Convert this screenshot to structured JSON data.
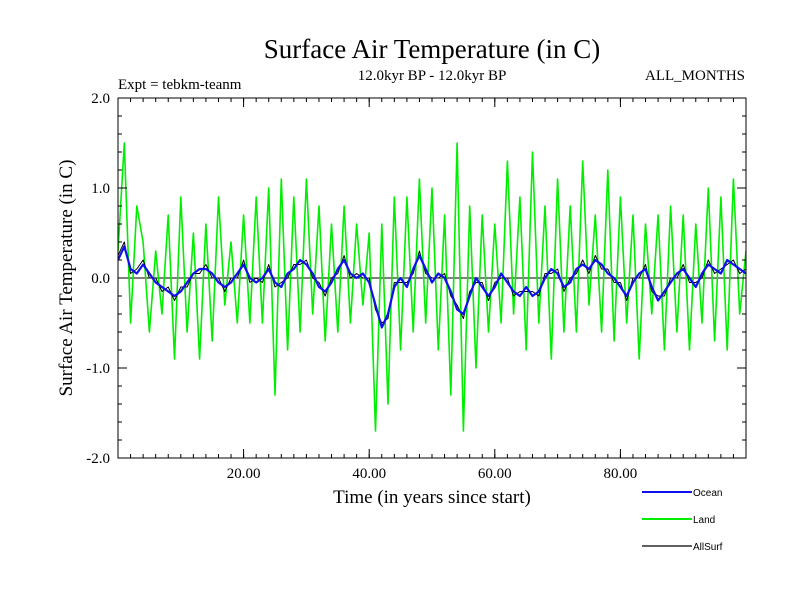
{
  "chart_data": {
    "type": "line",
    "title": "Surface Air Temperature (in C)",
    "subtitle": "12.0kyr BP - 12.0kyr BP",
    "expt_label": "Expt = tebkm-teanm",
    "months_label": "ALL_MONTHS",
    "xlabel": "Time (in years since start)",
    "ylabel": "Surface Air Temperature (in C)",
    "xlim": [
      0,
      100
    ],
    "ylim": [
      -2.0,
      2.0
    ],
    "x_ticks": [
      20,
      40,
      60,
      80
    ],
    "x_tick_labels": [
      "20.00",
      "40.00",
      "60.00",
      "80.00"
    ],
    "y_ticks": [
      2.0,
      1.0,
      0.0,
      -1.0,
      -2.0
    ],
    "y_tick_labels": [
      "2.0",
      "1.0",
      "0.0",
      "-1.0",
      "-2.0"
    ],
    "zero_line": true,
    "legend_position": "bottom-right",
    "series": [
      {
        "name": "Land",
        "color": "#00ee00",
        "x_step": 1,
        "x_start": 0,
        "values": [
          0.3,
          1.5,
          -0.5,
          0.8,
          0.4,
          -0.6,
          0.3,
          -0.4,
          0.7,
          -0.9,
          0.9,
          -0.6,
          0.5,
          -0.9,
          0.6,
          -0.7,
          0.9,
          -0.3,
          0.4,
          -0.5,
          0.7,
          -0.5,
          0.9,
          -0.5,
          1.0,
          -1.3,
          1.1,
          -0.8,
          0.9,
          -0.6,
          1.1,
          -0.4,
          0.8,
          -0.7,
          0.6,
          -0.6,
          0.8,
          -0.5,
          0.6,
          -0.3,
          0.5,
          -1.7,
          0.6,
          -1.4,
          0.9,
          -0.8,
          0.9,
          -0.6,
          1.1,
          -0.5,
          1.0,
          -0.8,
          0.7,
          -1.3,
          1.5,
          -1.7,
          0.8,
          -1.0,
          0.7,
          -0.6,
          0.6,
          -0.5,
          1.3,
          -0.4,
          0.9,
          -0.8,
          1.4,
          -0.5,
          0.8,
          -0.9,
          1.1,
          -0.6,
          0.8,
          -0.6,
          1.3,
          -0.3,
          0.7,
          -0.6,
          1.2,
          -0.7,
          0.9,
          -0.5,
          0.7,
          -0.9,
          0.6,
          -0.4,
          0.7,
          -0.8,
          0.8,
          -0.6,
          0.7,
          -0.8,
          0.6,
          -0.5,
          1.0,
          -0.7,
          0.9,
          -0.8,
          1.1,
          -0.4,
          0.3
        ]
      },
      {
        "name": "Ocean",
        "color": "#1010ee",
        "x_step": 1,
        "x_start": 0,
        "values": [
          0.2,
          0.35,
          0.1,
          0.05,
          0.15,
          0.05,
          -0.05,
          -0.1,
          -0.15,
          -0.2,
          -0.15,
          -0.05,
          0.05,
          0.1,
          0.1,
          0.05,
          -0.05,
          -0.1,
          -0.05,
          0.05,
          0.15,
          0.0,
          -0.05,
          0.0,
          0.1,
          -0.05,
          -0.1,
          0.05,
          0.1,
          0.2,
          0.15,
          0.05,
          -0.1,
          -0.15,
          -0.05,
          0.1,
          0.2,
          0.05,
          0.0,
          0.05,
          -0.05,
          -0.3,
          -0.55,
          -0.4,
          -0.1,
          0.0,
          -0.1,
          0.1,
          0.25,
          0.1,
          -0.05,
          0.05,
          0.0,
          -0.15,
          -0.35,
          -0.4,
          -0.2,
          0.0,
          -0.1,
          -0.2,
          -0.1,
          0.05,
          -0.05,
          -0.15,
          -0.2,
          -0.1,
          -0.2,
          -0.15,
          0.0,
          0.1,
          0.05,
          -0.1,
          -0.05,
          0.1,
          0.15,
          0.1,
          0.2,
          0.15,
          0.05,
          0.0,
          -0.1,
          -0.2,
          -0.05,
          0.05,
          0.1,
          -0.1,
          -0.25,
          -0.15,
          -0.05,
          0.05,
          0.1,
          0.0,
          -0.1,
          0.05,
          0.15,
          0.1,
          0.05,
          0.2,
          0.15,
          0.1,
          0.05
        ]
      },
      {
        "name": "AllSurf",
        "color": "#000000",
        "x_step": 1,
        "x_start": 0,
        "values": [
          0.25,
          0.4,
          0.05,
          0.1,
          0.2,
          0.0,
          0.0,
          -0.15,
          -0.1,
          -0.25,
          -0.1,
          -0.1,
          0.05,
          0.05,
          0.15,
          0.0,
          0.0,
          -0.15,
          0.0,
          0.0,
          0.2,
          -0.05,
          0.0,
          -0.05,
          0.15,
          -0.1,
          -0.05,
          0.0,
          0.15,
          0.15,
          0.2,
          0.0,
          -0.05,
          -0.2,
          0.0,
          0.05,
          0.25,
          0.0,
          0.05,
          0.0,
          0.0,
          -0.35,
          -0.5,
          -0.45,
          -0.05,
          -0.05,
          -0.05,
          0.05,
          0.3,
          0.05,
          0.0,
          0.0,
          0.05,
          -0.2,
          -0.3,
          -0.45,
          -0.15,
          -0.05,
          -0.05,
          -0.25,
          -0.05,
          0.0,
          0.0,
          -0.2,
          -0.15,
          -0.15,
          -0.15,
          -0.2,
          0.05,
          0.05,
          0.1,
          -0.15,
          0.0,
          0.05,
          0.2,
          0.05,
          0.25,
          0.1,
          0.1,
          -0.05,
          -0.05,
          -0.25,
          0.0,
          0.0,
          0.15,
          -0.15,
          -0.2,
          -0.2,
          0.0,
          0.0,
          0.15,
          -0.05,
          -0.05,
          0.0,
          0.2,
          0.05,
          0.1,
          0.15,
          0.2,
          0.05,
          0.1
        ]
      }
    ]
  }
}
